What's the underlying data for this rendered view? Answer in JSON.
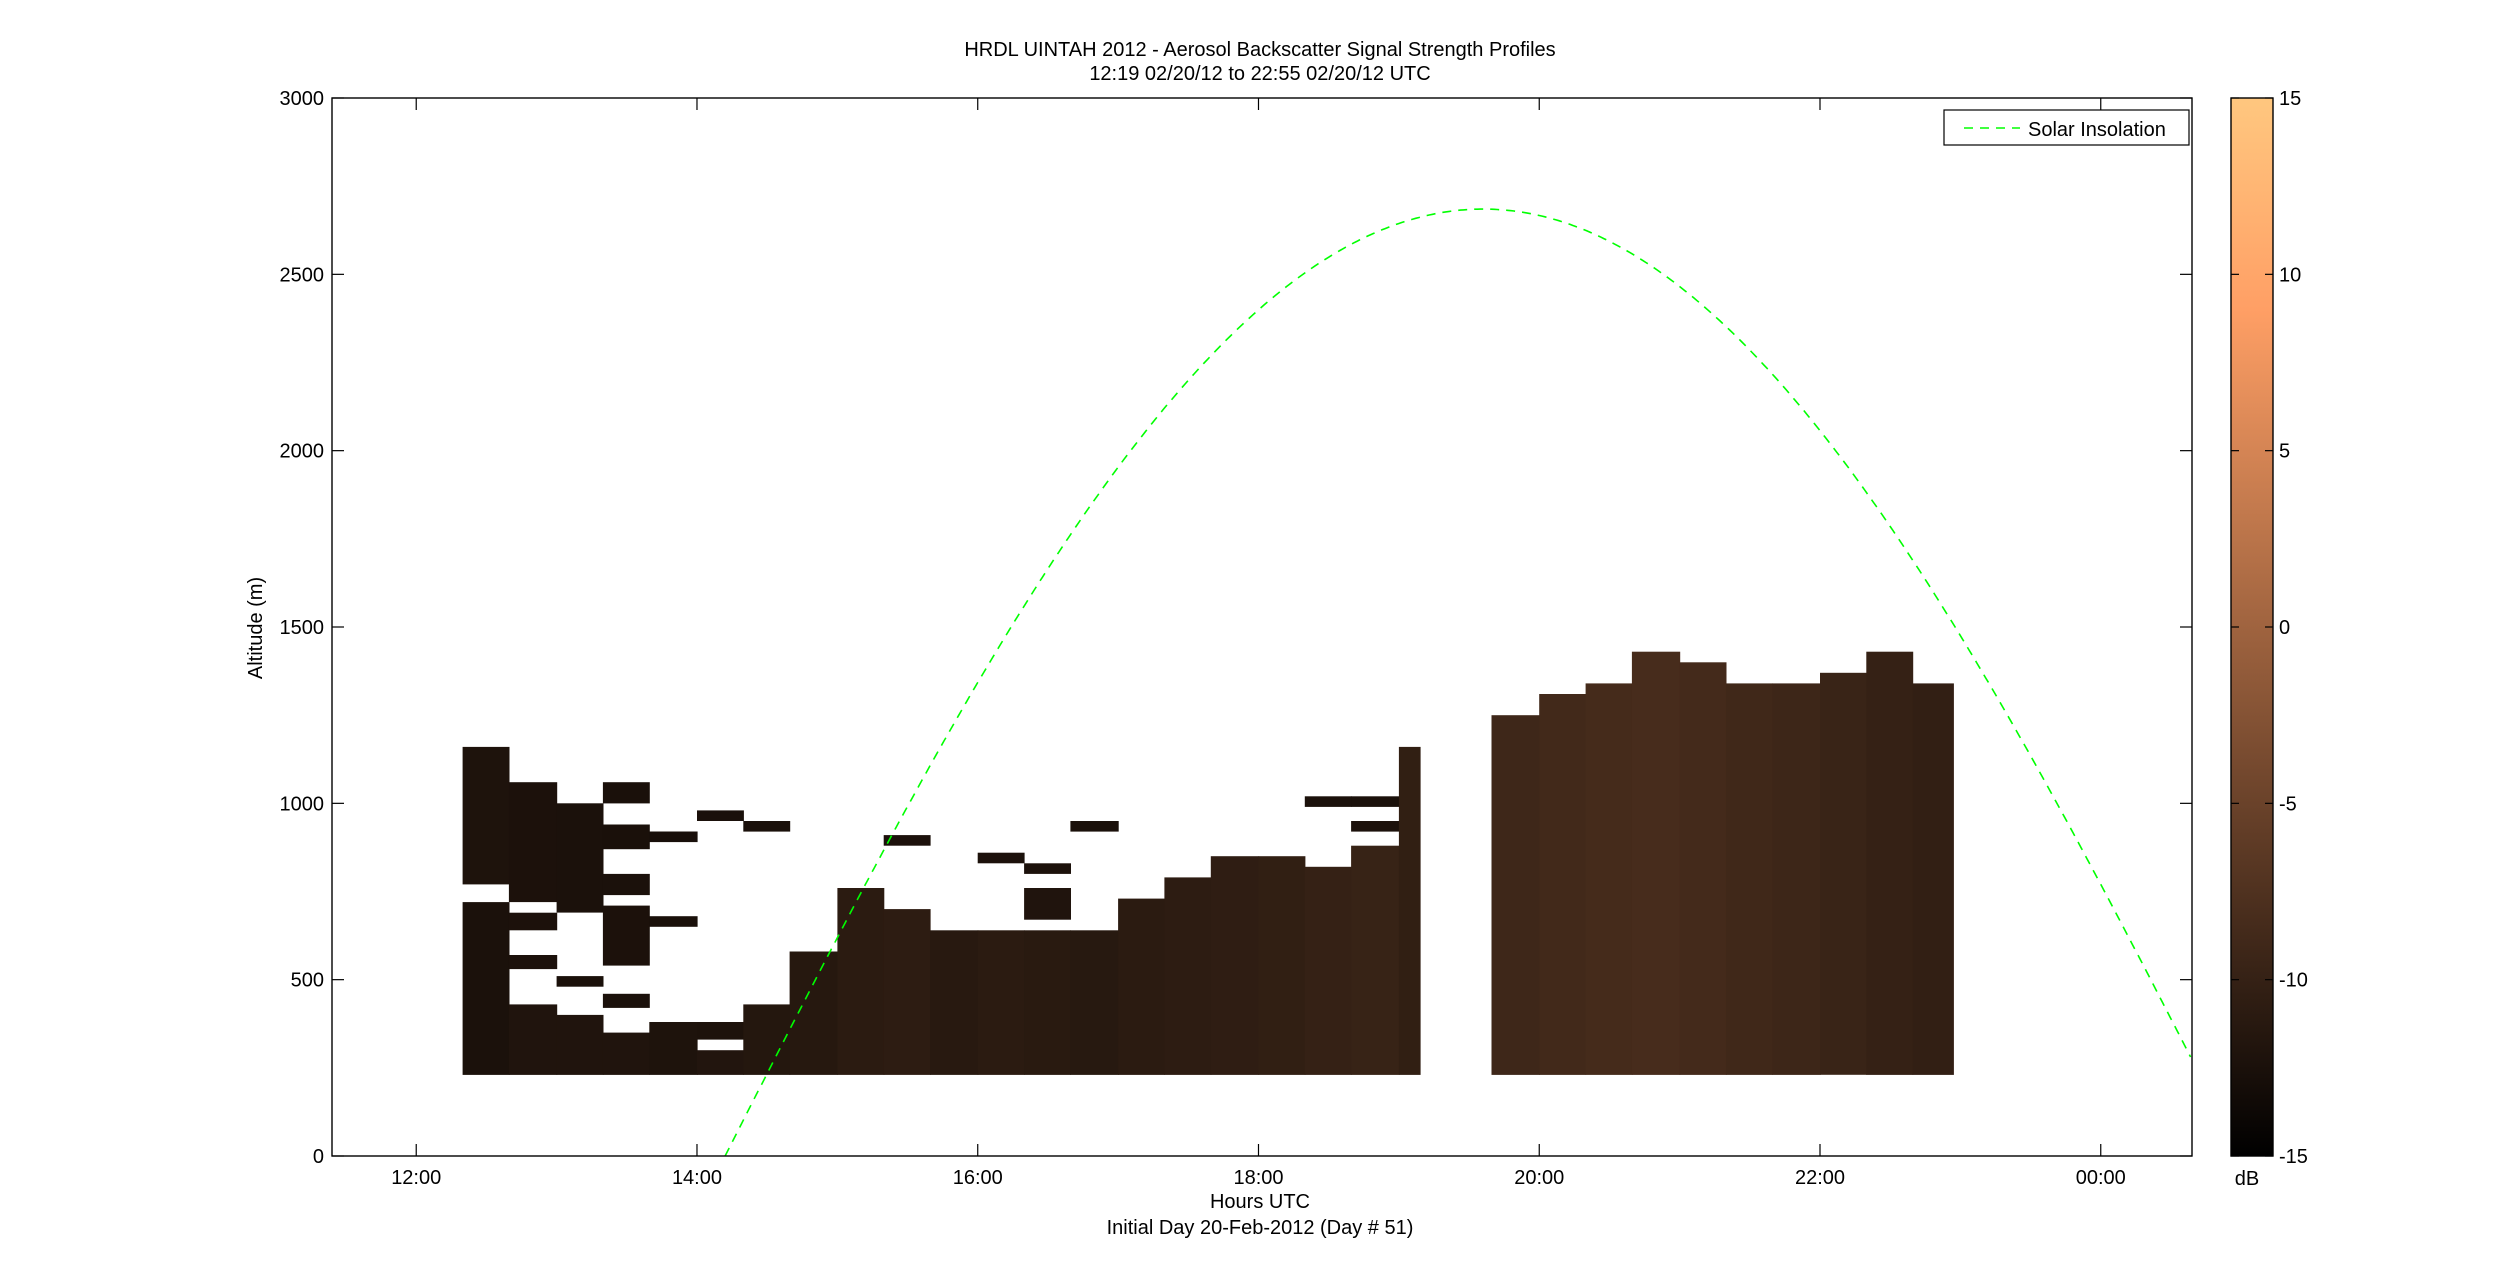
{
  "chart_data": {
    "type": "heatmap",
    "title": "HRDL UINTAH 2012 - Aerosol Backscatter Signal Strength Profiles",
    "subtitle": "12:19 02/20/12 to 22:55 02/20/12  UTC",
    "xlabel": "Hours UTC",
    "xlabel2": "Initial Day 20-Feb-2012 (Day # 51)",
    "ylabel": "Altitude (m)",
    "x_range_hours": [
      11.4,
      24.65
    ],
    "ylim": [
      0,
      3000
    ],
    "x_ticks": [
      {
        "hour": 12,
        "label": "12:00"
      },
      {
        "hour": 14,
        "label": "14:00"
      },
      {
        "hour": 16,
        "label": "16:00"
      },
      {
        "hour": 18,
        "label": "18:00"
      },
      {
        "hour": 20,
        "label": "20:00"
      },
      {
        "hour": 22,
        "label": "22:00"
      },
      {
        "hour": 24,
        "label": "00:00"
      }
    ],
    "y_ticks": [
      0,
      500,
      1000,
      1500,
      2000,
      2500,
      3000
    ],
    "colorbar": {
      "range": [
        -15,
        15
      ],
      "ticks": [
        -15,
        -10,
        -5,
        0,
        5,
        10,
        15
      ],
      "unit": "dB",
      "color_low": "#000000",
      "color_high": "#ffc77f"
    },
    "legend": {
      "entries": [
        "Solar Insolation"
      ],
      "placement": "top-right"
    },
    "solar_insolation": {
      "color": "#00ff00",
      "style": "dashed",
      "t_start_hour": 14.2,
      "t_end_hour": 24.65,
      "peak_hour": 19.6,
      "peak_altitude": 2685
    },
    "profiles": [
      {
        "t": [
          12.33,
          12.66
        ],
        "segments": [
          [
            230,
            720,
            -12.5
          ],
          [
            770,
            1160,
            -12.2
          ]
        ]
      },
      {
        "t": [
          12.66,
          13.0
        ],
        "segments": [
          [
            230,
            430,
            -12.0
          ],
          [
            530,
            570,
            -12.4
          ],
          [
            640,
            690,
            -12.4
          ],
          [
            720,
            1060,
            -12.4
          ]
        ]
      },
      {
        "t": [
          13.0,
          13.33
        ],
        "segments": [
          [
            230,
            400,
            -12.0
          ],
          [
            480,
            510,
            -12.6
          ],
          [
            690,
            1000,
            -12.5
          ]
        ]
      },
      {
        "t": [
          13.33,
          13.66
        ],
        "segments": [
          [
            230,
            350,
            -12.0
          ],
          [
            420,
            460,
            -12.5
          ],
          [
            540,
            710,
            -12.4
          ],
          [
            740,
            800,
            -12.5
          ],
          [
            870,
            940,
            -12.6
          ],
          [
            1000,
            1060,
            -12.6
          ]
        ]
      },
      {
        "t": [
          13.66,
          14.0
        ],
        "segments": [
          [
            230,
            380,
            -12.2
          ],
          [
            650,
            680,
            -12.6
          ],
          [
            890,
            920,
            -12.7
          ]
        ]
      },
      {
        "t": [
          14.0,
          14.33
        ],
        "segments": [
          [
            230,
            300,
            -11.8
          ],
          [
            330,
            380,
            -12.3
          ],
          [
            950,
            980,
            -12.6
          ]
        ]
      },
      {
        "t": [
          14.33,
          14.66
        ],
        "segments": [
          [
            230,
            430,
            -11.6
          ],
          [
            920,
            950,
            -12.6
          ]
        ]
      },
      {
        "t": [
          14.66,
          15.0
        ],
        "segments": [
          [
            230,
            580,
            -11.4
          ]
        ]
      },
      {
        "t": [
          15.0,
          15.33
        ],
        "segments": [
          [
            230,
            760,
            -11.0
          ]
        ]
      },
      {
        "t": [
          15.33,
          15.66
        ],
        "segments": [
          [
            230,
            700,
            -10.8
          ],
          [
            880,
            910,
            -12.4
          ]
        ]
      },
      {
        "t": [
          15.66,
          16.0
        ],
        "segments": [
          [
            230,
            640,
            -11.2
          ]
        ]
      },
      {
        "t": [
          16.0,
          16.33
        ],
        "segments": [
          [
            230,
            640,
            -11.0
          ],
          [
            830,
            860,
            -12.4
          ]
        ]
      },
      {
        "t": [
          16.33,
          16.66
        ],
        "segments": [
          [
            230,
            640,
            -11.1
          ],
          [
            670,
            760,
            -12.0
          ],
          [
            800,
            830,
            -12.4
          ]
        ]
      },
      {
        "t": [
          16.66,
          17.0
        ],
        "segments": [
          [
            230,
            640,
            -11.3
          ],
          [
            920,
            950,
            -12.6
          ]
        ]
      },
      {
        "t": [
          17.0,
          17.33
        ],
        "segments": [
          [
            230,
            730,
            -11.0
          ]
        ]
      },
      {
        "t": [
          17.33,
          17.66
        ],
        "segments": [
          [
            230,
            790,
            -10.8
          ]
        ]
      },
      {
        "t": [
          17.66,
          18.0
        ],
        "segments": [
          [
            230,
            850,
            -10.6
          ]
        ]
      },
      {
        "t": [
          18.0,
          18.33
        ],
        "segments": [
          [
            230,
            850,
            -10.4
          ]
        ]
      },
      {
        "t": [
          18.33,
          18.66
        ],
        "segments": [
          [
            230,
            820,
            -10.0
          ],
          [
            990,
            1020,
            -12.5
          ]
        ]
      },
      {
        "t": [
          18.66,
          19.0
        ],
        "segments": [
          [
            230,
            880,
            -9.8
          ],
          [
            920,
            950,
            -12.4
          ],
          [
            990,
            1020,
            -12.5
          ]
        ]
      },
      {
        "t": [
          19.0,
          19.15
        ],
        "segments": [
          [
            230,
            1160,
            -10.4
          ]
        ]
      },
      {
        "t": [
          19.66,
          20.0
        ],
        "segments": [
          [
            230,
            1250,
            -9.2
          ]
        ]
      },
      {
        "t": [
          20.0,
          20.33
        ],
        "segments": [
          [
            230,
            1310,
            -8.8
          ]
        ]
      },
      {
        "t": [
          20.33,
          20.66
        ],
        "segments": [
          [
            230,
            1340,
            -8.5
          ]
        ]
      },
      {
        "t": [
          20.66,
          21.0
        ],
        "segments": [
          [
            230,
            1430,
            -8.3
          ]
        ]
      },
      {
        "t": [
          21.0,
          21.33
        ],
        "segments": [
          [
            230,
            1400,
            -8.6
          ]
        ]
      },
      {
        "t": [
          21.33,
          21.66
        ],
        "segments": [
          [
            230,
            1340,
            -9.0
          ]
        ]
      },
      {
        "t": [
          21.66,
          22.0
        ],
        "segments": [
          [
            230,
            1340,
            -9.3
          ]
        ]
      },
      {
        "t": [
          22.0,
          22.33
        ],
        "segments": [
          [
            230,
            1370,
            -9.6
          ]
        ]
      },
      {
        "t": [
          22.33,
          22.66
        ],
        "segments": [
          [
            230,
            1430,
            -10.0
          ]
        ]
      },
      {
        "t": [
          22.66,
          22.95
        ],
        "segments": [
          [
            230,
            1340,
            -10.3
          ]
        ]
      }
    ]
  }
}
